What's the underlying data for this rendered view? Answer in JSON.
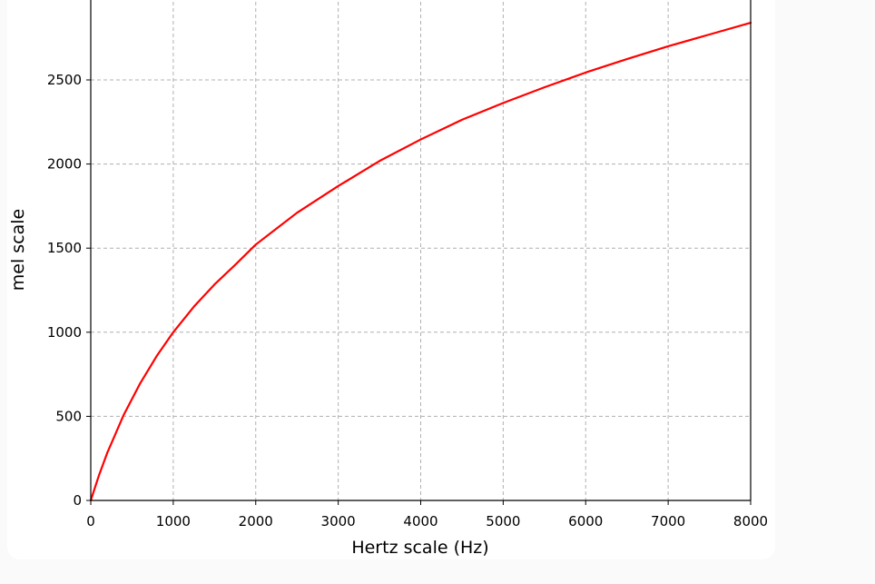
{
  "chart_data": {
    "type": "line",
    "title": "",
    "xlabel": "Hertz scale (Hz)",
    "ylabel": "mel scale",
    "xlim": [
      0,
      8000
    ],
    "ylim": [
      0,
      3000
    ],
    "x_ticks": [
      0,
      1000,
      2000,
      3000,
      4000,
      5000,
      6000,
      7000,
      8000
    ],
    "x_tick_labels": [
      "0",
      "1000",
      "2000",
      "3000",
      "4000",
      "5000",
      "6000",
      "7000",
      "8000"
    ],
    "y_ticks": [
      0,
      500,
      1000,
      1500,
      2000,
      2500
    ],
    "y_tick_labels": [
      "0",
      "500",
      "1000",
      "1500",
      "2000",
      "2500"
    ],
    "grid": true,
    "grid_style": "dashed",
    "series": [
      {
        "color": "#ff0000",
        "x": [
          0,
          100,
          200,
          400,
          600,
          800,
          1000,
          1250,
          1500,
          1750,
          2000,
          2500,
          3000,
          3500,
          4000,
          4500,
          5000,
          5500,
          6000,
          6500,
          7000,
          7500,
          8000
        ],
        "y": [
          0,
          150,
          283,
          509,
          697,
          859,
          1000,
          1152,
          1284,
          1400,
          1521,
          1710,
          1869,
          2018,
          2146,
          2263,
          2363,
          2456,
          2544,
          2624,
          2700,
          2770,
          2840
        ]
      }
    ]
  }
}
